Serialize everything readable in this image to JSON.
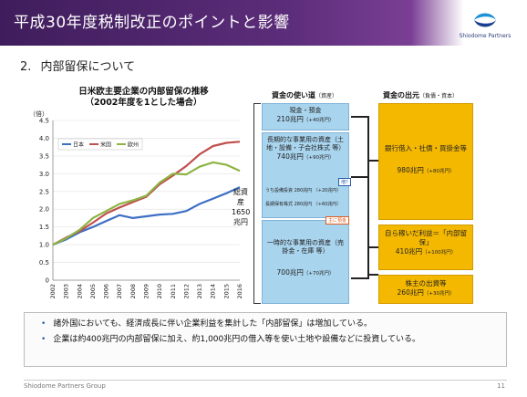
{
  "header": {
    "title": "平成30年度税制改正のポイントと影響",
    "logo_text": "Shiodome Partners"
  },
  "section": {
    "number": "2.",
    "title": "内部留保について"
  },
  "chart_data": {
    "type": "line",
    "title": "日米欧主要企業の内部留保の推移",
    "subtitle": "（2002年度を1とした場合）",
    "ylabel": "（倍）",
    "xlabel": "",
    "ylim": [
      0,
      4.5
    ],
    "yticks": [
      "0",
      "0.5",
      "1.0",
      "1.5",
      "2.0",
      "2.5",
      "3.0",
      "3.5",
      "4.0",
      "4.5"
    ],
    "x": [
      "2002",
      "2003",
      "2004",
      "2005",
      "2006",
      "2007",
      "2008",
      "2009",
      "2010",
      "2011",
      "2012",
      "2013",
      "2014",
      "2015",
      "2016"
    ],
    "legend_position": "top-left",
    "series": [
      {
        "name": "日本",
        "color": "#3d6fc4",
        "values": [
          1.0,
          1.15,
          1.35,
          1.5,
          1.67,
          1.83,
          1.75,
          1.8,
          1.85,
          1.87,
          1.95,
          2.15,
          2.3,
          2.45,
          2.62
        ]
      },
      {
        "name": "米国",
        "color": "#c0504d",
        "values": [
          1.0,
          1.2,
          1.38,
          1.62,
          1.88,
          2.05,
          2.2,
          2.35,
          2.7,
          2.95,
          3.22,
          3.55,
          3.78,
          3.87,
          3.9
        ]
      },
      {
        "name": "欧州",
        "color": "#8db444",
        "values": [
          1.0,
          1.18,
          1.42,
          1.75,
          1.95,
          2.15,
          2.25,
          2.38,
          2.75,
          3.0,
          2.98,
          3.2,
          3.32,
          3.25,
          3.08
        ]
      }
    ]
  },
  "uses": {
    "heading": "資金の使い道",
    "heading_note": "（資産）",
    "total_label": "総資産",
    "total_value": "1650",
    "total_unit": "兆円",
    "boxes": [
      {
        "label": "現金・預金",
        "value": "210兆円",
        "note": "（+40兆円）"
      },
      {
        "label": "長期的な事業用の資産（土地・設備・子会社株式 等）",
        "value": "740兆円",
        "note": "（+90兆円）",
        "sub1": "うち設備投資",
        "sub1_val": "280兆円",
        "sub1_note": "（+20兆円）",
        "sub2": "長期保有株式",
        "sub2_val": "280兆円",
        "sub2_note": "（+60兆円）"
      },
      {
        "label": "一時的な事業用の資産（売掛金・在庫 等）",
        "value": "700兆円",
        "note": "（+70兆円）"
      }
    ],
    "tag_blue": "増?",
    "tag_red": "主に預金"
  },
  "sources": {
    "heading": "資金の出元",
    "heading_note": "（負債・資本）",
    "boxes": [
      {
        "label": "銀行借入・社債・買掛金等",
        "value": "980兆円",
        "note": "（+80兆円）"
      },
      {
        "label": "自ら稼いだ利益＝「内部留保」",
        "value": "410兆円",
        "note": "（+100兆円）"
      },
      {
        "label": "株主の出資等",
        "value": "260兆円",
        "note": "（+30兆円）"
      }
    ]
  },
  "bullets": [
    "諸外国においても、経済成長に伴い企業利益を集計した「内部留保」は増加している。",
    "企業は約400兆円の内部留保に加え、約1,000兆円の借入等を使い土地や設備などに投資している。"
  ],
  "footer": {
    "company": "Shiodome Partners Group",
    "page": "11"
  }
}
